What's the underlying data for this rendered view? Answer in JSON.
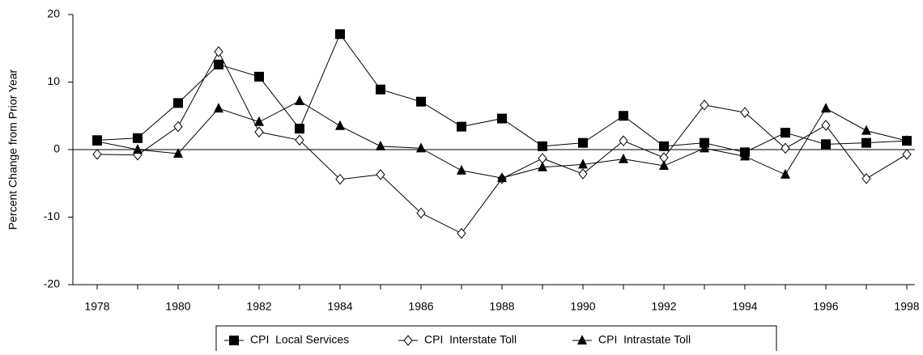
{
  "chart_data": {
    "type": "line",
    "y_label": "Percent Change from Prior Year",
    "x": [
      1978,
      1979,
      1980,
      1981,
      1982,
      1983,
      1984,
      1985,
      1986,
      1987,
      1988,
      1989,
      1990,
      1991,
      1992,
      1993,
      1994,
      1995,
      1996,
      1997,
      1998
    ],
    "series": [
      {
        "name": "CPI  Local Services",
        "color": "#000000",
        "marker": "square",
        "values": [
          1.4,
          1.7,
          6.9,
          12.6,
          10.8,
          3.1,
          17.1,
          8.9,
          7.1,
          3.4,
          4.6,
          0.5,
          1.0,
          5.0,
          0.5,
          1.0,
          -0.4,
          2.5,
          0.8,
          1.0,
          1.3
        ]
      },
      {
        "name": "CPI  Interstate Toll",
        "color": "#000000",
        "marker": "diamond",
        "values": [
          -0.7,
          -0.8,
          3.4,
          14.5,
          2.6,
          1.4,
          -4.4,
          -3.7,
          -9.4,
          -12.4,
          -4.3,
          -1.3,
          -3.6,
          1.3,
          -1.2,
          6.6,
          5.5,
          0.2,
          3.6,
          -4.3,
          -0.7
        ]
      },
      {
        "name": "CPI  Intrastate Toll",
        "color": "#000000",
        "marker": "triangle",
        "values": [
          1.2,
          0,
          -0.6,
          6.1,
          4.1,
          7.2,
          3.5,
          0.5,
          0.2,
          -3.1,
          -4.2,
          -2.6,
          -2.2,
          -1.4,
          -2.4,
          0.2,
          -1.0,
          -3.7,
          6.1,
          2.8,
          1.3
        ]
      }
    ],
    "xlim": [
      1977.4,
      1998.2
    ],
    "xticks": [
      1978,
      1980,
      1982,
      1984,
      1986,
      1988,
      1990,
      1992,
      1994,
      1996,
      1998
    ],
    "ylim": [
      -20,
      20
    ],
    "yticks": [
      -20,
      -10,
      0,
      10,
      20
    ],
    "legend": "bottom"
  }
}
